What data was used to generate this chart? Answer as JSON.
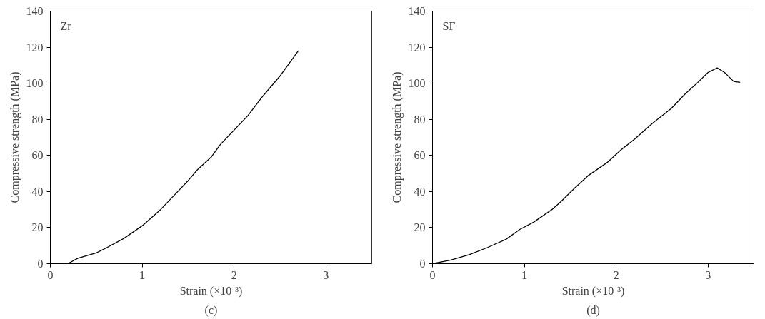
{
  "chart_data": [
    {
      "type": "line",
      "title": "(c)",
      "annotations": [
        "Zr"
      ],
      "xlabel": "Strain (×10⁻³)",
      "ylabel": "Compressive strength (MPa)",
      "xlim": [
        0,
        3.5
      ],
      "xticks": [
        0,
        1,
        2,
        3
      ],
      "ylim": [
        0,
        140
      ],
      "yticks": [
        0,
        20,
        40,
        60,
        80,
        100,
        120,
        140
      ],
      "grid": false,
      "series": [
        {
          "color": "#000000",
          "x": [
            0.19,
            0.3,
            0.5,
            0.6,
            0.8,
            1.0,
            1.2,
            1.35,
            1.5,
            1.6,
            1.75,
            1.85,
            2.0,
            2.15,
            2.3,
            2.35,
            2.5,
            2.6,
            2.7
          ],
          "values": [
            0,
            3,
            6,
            8.5,
            14,
            21,
            30,
            38,
            46,
            52,
            59,
            66,
            74,
            82,
            92,
            95,
            104,
            111,
            118
          ]
        }
      ]
    },
    {
      "type": "line",
      "title": "(d)",
      "annotations": [
        "SF"
      ],
      "xlabel": "Strain (×10⁻³)",
      "ylabel": "Compressive strength (MPa)",
      "xlim": [
        0,
        3.5
      ],
      "xticks": [
        0,
        1,
        2,
        3
      ],
      "ylim": [
        0,
        140
      ],
      "yticks": [
        0,
        20,
        40,
        60,
        80,
        100,
        120,
        140
      ],
      "grid": false,
      "series": [
        {
          "color": "#000000",
          "x": [
            0,
            0.2,
            0.4,
            0.6,
            0.8,
            0.95,
            1.1,
            1.3,
            1.4,
            1.55,
            1.7,
            1.9,
            2.05,
            2.2,
            2.4,
            2.6,
            2.75,
            2.9,
            3.0,
            3.1,
            3.18,
            3.28,
            3.35
          ],
          "values": [
            0,
            2,
            5,
            9,
            13.5,
            19,
            23,
            30,
            34.5,
            42,
            49,
            56,
            63,
            69,
            78,
            86,
            94,
            101,
            106,
            108.5,
            106,
            101,
            100.5
          ]
        }
      ]
    }
  ]
}
